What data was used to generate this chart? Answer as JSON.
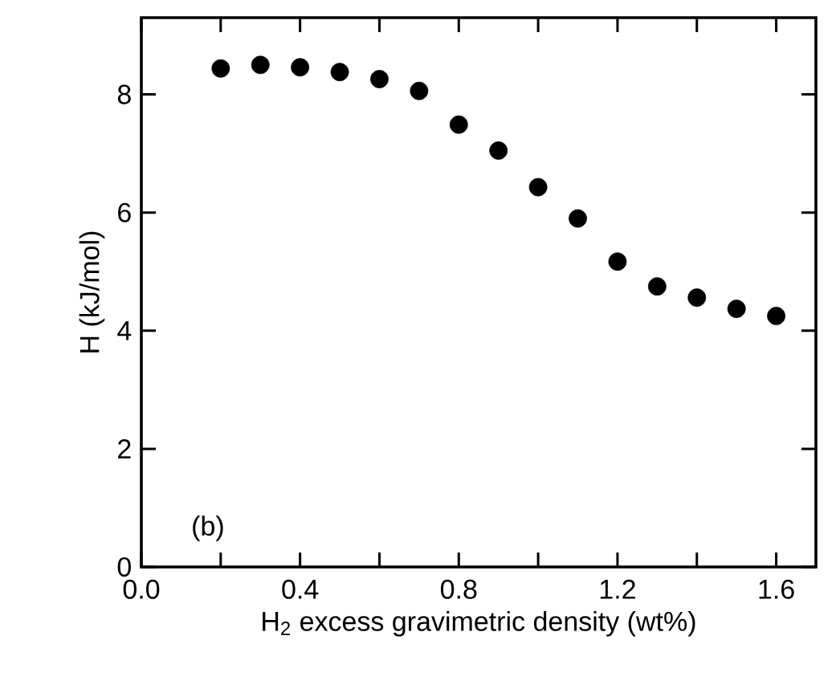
{
  "chart_data": {
    "type": "scatter",
    "xlabel": "H$_{2}$ excess gravimetric density (wt%)",
    "ylabel": "H (kJ/mol)",
    "annotations": [
      "(b)"
    ],
    "x": [
      0.2,
      0.3,
      0.4,
      0.5,
      0.6,
      0.7,
      0.8,
      0.9,
      1.0,
      1.1,
      1.2,
      1.3,
      1.4,
      1.5,
      1.6
    ],
    "series": [
      {
        "color": "#000000",
        "values": [
          8.44,
          8.5,
          8.46,
          8.38,
          8.26,
          8.06,
          7.49,
          7.05,
          6.43,
          5.9,
          5.17,
          4.75,
          4.56,
          4.37,
          4.25
        ]
      }
    ],
    "marker": "circle",
    "xlim": [
      0,
      1.7
    ],
    "ylim": [
      0,
      9.3
    ],
    "xticks": [
      {
        "value": 0,
        "label": "0.0"
      },
      {
        "value": 0.2,
        "label": null
      },
      0.4,
      {
        "value": 0.6,
        "label": null
      },
      0.8,
      {
        "value": 1.0,
        "label": null
      },
      1.2,
      {
        "value": 1.4,
        "label": null
      },
      1.6
    ],
    "yticks": [
      0,
      2,
      4,
      6,
      8
    ],
    "grid": false
  }
}
